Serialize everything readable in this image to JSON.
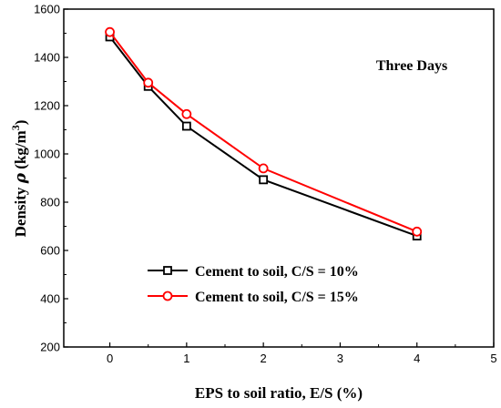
{
  "chart_data": {
    "type": "line",
    "xlabel": "EPS to soil ratio, E/S (%)",
    "ylabel_prefix": "Density ",
    "ylabel_symbol": "ρ",
    "ylabel_unit": " (kg/m",
    "ylabel_sup": "3",
    "ylabel_close": ")",
    "annotation": "Three Days",
    "xlim": [
      -0.6,
      5
    ],
    "ylim": [
      200,
      1600
    ],
    "xticks": [
      0,
      1,
      2,
      3,
      4,
      5
    ],
    "yticks": [
      200,
      400,
      600,
      800,
      1000,
      1200,
      1400,
      1600
    ],
    "grid": false,
    "legend_position": "bottom-center",
    "series": [
      {
        "name": "Cement to soil, C/S = 10%",
        "color": "#000000",
        "marker": "square",
        "x": [
          0,
          0.5,
          1,
          2,
          4
        ],
        "y": [
          1485,
          1280,
          1115,
          893,
          660
        ]
      },
      {
        "name": "Cement to soil, C/S = 15%",
        "color": "#ff0000",
        "marker": "circle",
        "x": [
          0,
          0.5,
          1,
          2,
          4
        ],
        "y": [
          1505,
          1295,
          1165,
          940,
          678
        ]
      }
    ]
  }
}
